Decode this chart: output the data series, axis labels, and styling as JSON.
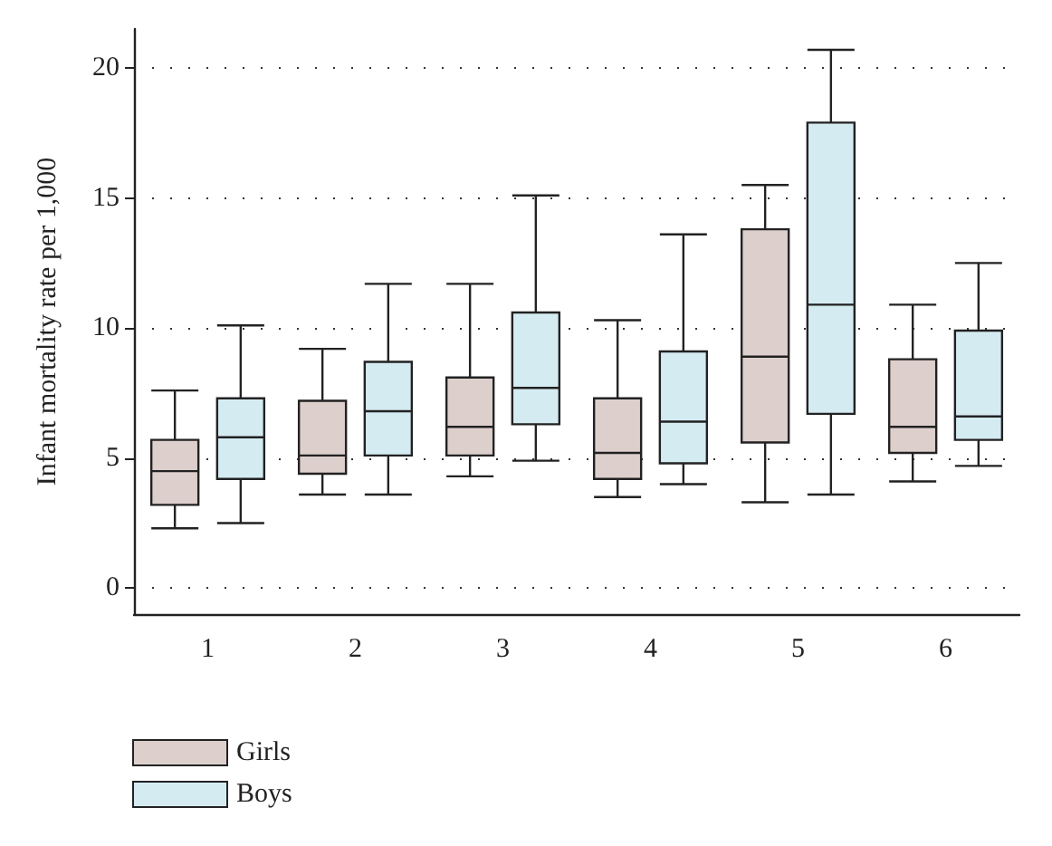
{
  "chart_data": {
    "type": "box",
    "ylabel": "Infant mortality rate per 1,000",
    "categories": [
      "1",
      "2",
      "3",
      "4",
      "5",
      "6"
    ],
    "ylim": [
      -1,
      21.5
    ],
    "yticks": [
      0,
      5,
      10,
      15,
      20
    ],
    "grid": "y",
    "legend": "bottom left",
    "series": [
      {
        "name": "Girls",
        "color": "#dccfcc",
        "boxes": [
          {
            "low": 2.3,
            "q1": 3.2,
            "median": 4.5,
            "q3": 5.7,
            "high": 7.6
          },
          {
            "low": 3.6,
            "q1": 4.4,
            "median": 5.1,
            "q3": 7.2,
            "high": 9.2
          },
          {
            "low": 4.3,
            "q1": 5.1,
            "median": 6.2,
            "q3": 8.1,
            "high": 11.7
          },
          {
            "low": 3.5,
            "q1": 4.2,
            "median": 5.2,
            "q3": 7.3,
            "high": 10.3
          },
          {
            "low": 3.3,
            "q1": 5.6,
            "median": 8.9,
            "q3": 13.8,
            "high": 15.5
          },
          {
            "low": 4.1,
            "q1": 5.2,
            "median": 6.2,
            "q3": 8.8,
            "high": 10.9
          }
        ]
      },
      {
        "name": "Boys",
        "color": "#d5ebf2",
        "boxes": [
          {
            "low": 2.5,
            "q1": 4.2,
            "median": 5.8,
            "q3": 7.3,
            "high": 10.1
          },
          {
            "low": 3.6,
            "q1": 5.1,
            "median": 6.8,
            "q3": 8.7,
            "high": 11.7
          },
          {
            "low": 4.9,
            "q1": 6.3,
            "median": 7.7,
            "q3": 10.6,
            "high": 15.1
          },
          {
            "low": 4.0,
            "q1": 4.8,
            "median": 6.4,
            "q3": 9.1,
            "high": 13.6
          },
          {
            "low": 3.6,
            "q1": 6.7,
            "median": 10.9,
            "q3": 17.9,
            "high": 20.7
          },
          {
            "low": 4.7,
            "q1": 5.7,
            "median": 6.6,
            "q3": 9.9,
            "high": 12.5
          }
        ]
      }
    ]
  }
}
